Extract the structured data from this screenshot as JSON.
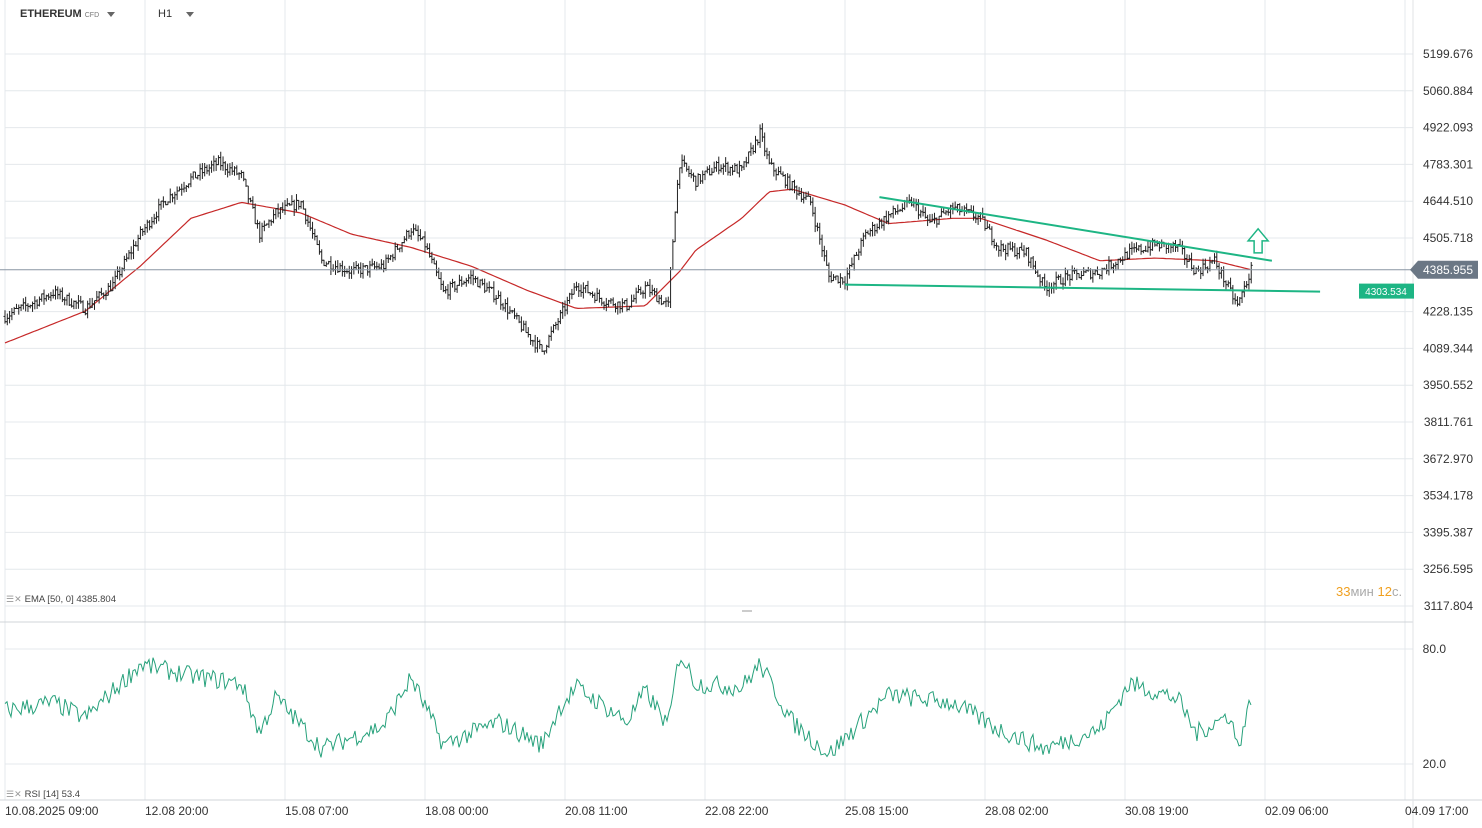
{
  "toolbar": {
    "symbol": "ETHEREUM",
    "symbol_tag": "CFD",
    "timeframe": "H1"
  },
  "price_axis": {
    "ticks": [
      "5199.676",
      "5060.884",
      "4922.093",
      "4783.301",
      "4644.510",
      "4505.718",
      "4228.135",
      "4089.344",
      "3950.552",
      "3811.761",
      "3672.970",
      "3534.178",
      "3395.387",
      "3256.595",
      "3117.804"
    ],
    "current_price": "4385.955",
    "support_label": "4303.534"
  },
  "rsi_axis": {
    "ticks": [
      "80.0",
      "20.0"
    ]
  },
  "time_axis": {
    "ticks": [
      "10.08.2025  09:00",
      "12.08  20:00",
      "15.08  07:00",
      "18.08  00:00",
      "20.08  11:00",
      "22.08  22:00",
      "25.08  15:00",
      "28.08  02:00",
      "30.08  19:00",
      "02.09  06:00",
      "04.09  17:00"
    ]
  },
  "indicators": {
    "ema_label": "EMA [50, 0]",
    "ema_value": "4385.804",
    "rsi_label": "RSI [14]",
    "rsi_value": "53.4"
  },
  "countdown": {
    "minutes": "33",
    "min_unit": "мин",
    "seconds": "12",
    "sec_unit": "с."
  },
  "colors": {
    "candle": "#222222",
    "ema": "#c62828",
    "rsi": "#26a17b",
    "trendline": "#1db584",
    "grid": "#e4e8ec",
    "arrow": "#1db584"
  },
  "chart_data": {
    "type": "line",
    "instrument": "ETHEREUM CFD",
    "interval": "H1",
    "y_range": [
      3117.804,
      5199.676
    ],
    "price_anchors": [
      [
        "10.08.2025 09:00",
        4210
      ],
      [
        "11.08 06:00",
        4300
      ],
      [
        "11.08 20:00",
        4240
      ],
      [
        "12.08 08:00",
        4330
      ],
      [
        "12.08 20:00",
        4520
      ],
      [
        "13.08 07:00",
        4650
      ],
      [
        "13.08 18:00",
        4730
      ],
      [
        "14.08 06:00",
        4790
      ],
      [
        "14.08 16:00",
        4740
      ],
      [
        "15.08 00:00",
        4520
      ],
      [
        "15.08 07:00",
        4600
      ],
      [
        "15.08 18:00",
        4640
      ],
      [
        "16.08 03:00",
        4420
      ],
      [
        "16.08 16:00",
        4380
      ],
      [
        "17.08 06:00",
        4400
      ],
      [
        "17.08 18:00",
        4540
      ],
      [
        "18.08 00:00",
        4480
      ],
      [
        "18.08 08:00",
        4300
      ],
      [
        "18.08 20:00",
        4360
      ],
      [
        "19.08 08:00",
        4280
      ],
      [
        "19.08 20:00",
        4150
      ],
      [
        "20.08 03:00",
        4080
      ],
      [
        "20.08 11:00",
        4210
      ],
      [
        "20.08 18:00",
        4330
      ],
      [
        "21.08 06:00",
        4270
      ],
      [
        "21.08 16:00",
        4250
      ],
      [
        "22.08 00:00",
        4320
      ],
      [
        "22.08 10:00",
        4250
      ],
      [
        "22.08 13:00",
        4620
      ],
      [
        "22.08 15:00",
        4790
      ],
      [
        "22.08 22:00",
        4720
      ],
      [
        "23.08 08:00",
        4780
      ],
      [
        "23.08 18:00",
        4760
      ],
      [
        "24.08 02:00",
        4900
      ],
      [
        "24.08 06:00",
        4780
      ],
      [
        "24.08 16:00",
        4700
      ],
      [
        "25.08 00:00",
        4640
      ],
      [
        "25.08 08:00",
        4360
      ],
      [
        "25.08 15:00",
        4350
      ],
      [
        "26.08 00:00",
        4520
      ],
      [
        "26.08 10:00",
        4590
      ],
      [
        "26.08 20:00",
        4640
      ],
      [
        "27.08 04:00",
        4560
      ],
      [
        "27.08 14:00",
        4620
      ],
      [
        "28.08 02:00",
        4580
      ],
      [
        "28.08 10:00",
        4470
      ],
      [
        "28.08 22:00",
        4450
      ],
      [
        "29.08 06:00",
        4320
      ],
      [
        "29.08 16:00",
        4360
      ],
      [
        "30.08 06:00",
        4380
      ],
      [
        "30.08 19:00",
        4450
      ],
      [
        "31.08 06:00",
        4480
      ],
      [
        "31.08 16:00",
        4470
      ],
      [
        "01.09 00:00",
        4380
      ],
      [
        "01.09 08:00",
        4420
      ],
      [
        "01.09 15:00",
        4300
      ],
      [
        "01.09 18:00",
        4250
      ],
      [
        "02.09 00:00",
        4386
      ]
    ],
    "ema_50_anchors": [
      [
        "10.08.2025 09:00",
        4110
      ],
      [
        "11.08 20:00",
        4230
      ],
      [
        "12.08 20:00",
        4400
      ],
      [
        "13.08 18:00",
        4580
      ],
      [
        "14.08 16:00",
        4640
      ],
      [
        "15.08 18:00",
        4600
      ],
      [
        "16.08 16:00",
        4520
      ],
      [
        "17.08 18:00",
        4470
      ],
      [
        "18.08 20:00",
        4400
      ],
      [
        "19.08 20:00",
        4310
      ],
      [
        "20.08 18:00",
        4240
      ],
      [
        "22.08 00:00",
        4250
      ],
      [
        "22.08 15:00",
        4380
      ],
      [
        "22.08 22:00",
        4460
      ],
      [
        "23.08 18:00",
        4580
      ],
      [
        "24.08 06:00",
        4680
      ],
      [
        "24.08 16:00",
        4690
      ],
      [
        "25.08 15:00",
        4630
      ],
      [
        "26.08 10:00",
        4560
      ],
      [
        "27.08 14:00",
        4580
      ],
      [
        "28.08 02:00",
        4580
      ],
      [
        "29.08 06:00",
        4500
      ],
      [
        "30.08 06:00",
        4420
      ],
      [
        "31.08 06:00",
        4430
      ],
      [
        "01.09 08:00",
        4420
      ],
      [
        "02.09 00:00",
        4386
      ]
    ],
    "rsi_14_anchors": [
      [
        "10.08.2025 09:00",
        48
      ],
      [
        "11.08 06:00",
        52
      ],
      [
        "11.08 20:00",
        44
      ],
      [
        "12.08 20:00",
        72
      ],
      [
        "13.08 18:00",
        66
      ],
      [
        "14.08 16:00",
        62
      ],
      [
        "15.08 00:00",
        36
      ],
      [
        "15.08 07:00",
        55
      ],
      [
        "16.08 03:00",
        28
      ],
      [
        "17.08 06:00",
        40
      ],
      [
        "17.08 18:00",
        65
      ],
      [
        "18.08 08:00",
        30
      ],
      [
        "19.08 08:00",
        42
      ],
      [
        "20.08 03:00",
        30
      ],
      [
        "20.08 11:00",
        50
      ],
      [
        "20.08 18:00",
        60
      ],
      [
        "21.08 16:00",
        42
      ],
      [
        "22.08 00:00",
        58
      ],
      [
        "22.08 10:00",
        40
      ],
      [
        "22.08 15:00",
        78
      ],
      [
        "22.08 22:00",
        62
      ],
      [
        "23.08 18:00",
        60
      ],
      [
        "24.08 02:00",
        72
      ],
      [
        "24.08 16:00",
        42
      ],
      [
        "25.08 08:00",
        25
      ],
      [
        "26.08 10:00",
        56
      ],
      [
        "27.08 14:00",
        52
      ],
      [
        "28.08 10:00",
        38
      ],
      [
        "29.08 06:00",
        28
      ],
      [
        "30.08 06:00",
        38
      ],
      [
        "30.08 19:00",
        62
      ],
      [
        "31.08 16:00",
        54
      ],
      [
        "01.09 00:00",
        36
      ],
      [
        "01.09 15:00",
        46
      ],
      [
        "01.09 18:00",
        28
      ],
      [
        "02.09 00:00",
        53.4
      ]
    ],
    "rsi_range": [
      0,
      100
    ],
    "rsi_levels": [
      80,
      20
    ],
    "trendlines": [
      {
        "name": "resistance",
        "from": [
          "26.08 06:00",
          4660
        ],
        "to": [
          "02.09 09:00",
          4420
        ]
      },
      {
        "name": "support",
        "from": [
          "25.08 15:00",
          4330
        ],
        "to": [
          "03.09 06:00",
          4303.534
        ]
      }
    ],
    "annotations": [
      {
        "type": "arrow-up",
        "at": [
          "02.09 03:00",
          4480
        ]
      }
    ],
    "grid": true,
    "xlabel": "",
    "ylabel": ""
  }
}
